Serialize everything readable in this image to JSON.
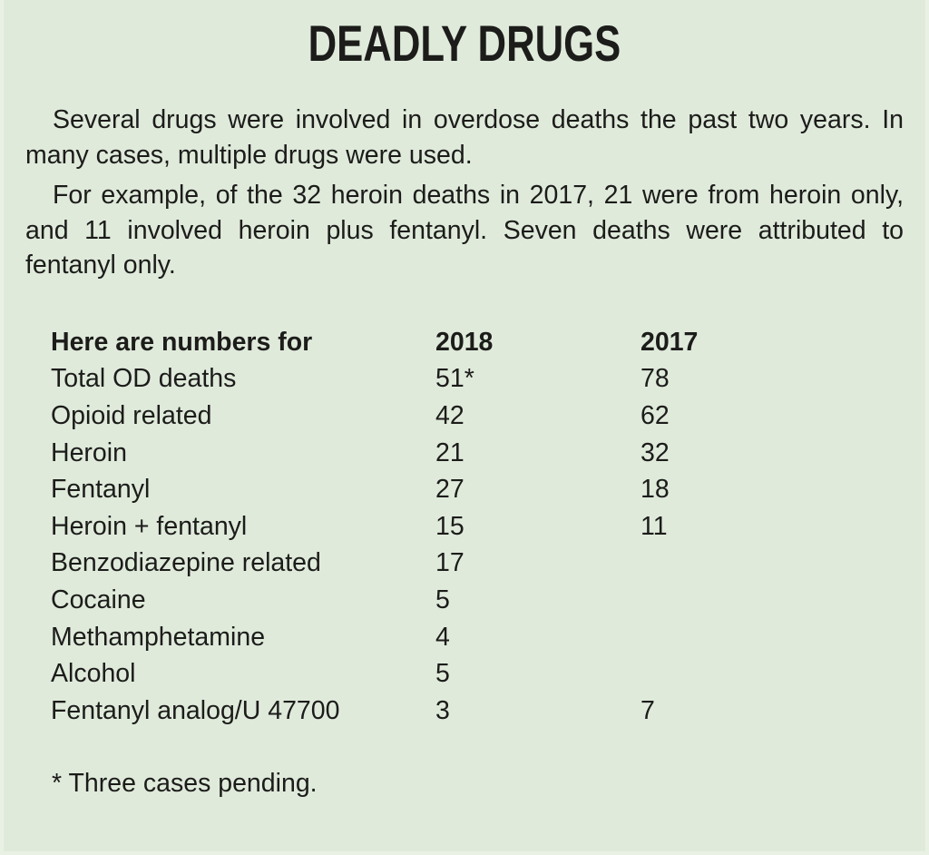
{
  "title": "DEADLY DRUGS",
  "intro": [
    "Several drugs were involved in overdose deaths the past two years. In many cases, multiple drugs were used.",
    "For example, of the 32 heroin deaths in 2017, 21 were from her­oin only, and 11 involved  heroin plus fentanyl. Seven deaths were attributed to fentanyl only."
  ],
  "table": {
    "headers": [
      "Here are numbers for",
      "2018",
      "2017"
    ],
    "rows": [
      [
        "Total OD deaths",
        "51*",
        "78"
      ],
      [
        "Opioid related",
        "42",
        "62"
      ],
      [
        "Heroin",
        "21",
        "32"
      ],
      [
        "Fentanyl",
        "27",
        "18"
      ],
      [
        "Heroin + fentanyl",
        "15",
        "11"
      ],
      [
        "Benzodiazepine related",
        "17",
        ""
      ],
      [
        "Cocaine",
        "5",
        ""
      ],
      [
        "Methamphetamine",
        "4",
        ""
      ],
      [
        "Alcohol",
        "5",
        ""
      ],
      [
        "Fentanyl analog/U 47700",
        "3",
        "7"
      ]
    ]
  },
  "footnote": "* Three cases pending.",
  "colors": {
    "background": "#dfeadb",
    "text": "#1c1c1a"
  }
}
